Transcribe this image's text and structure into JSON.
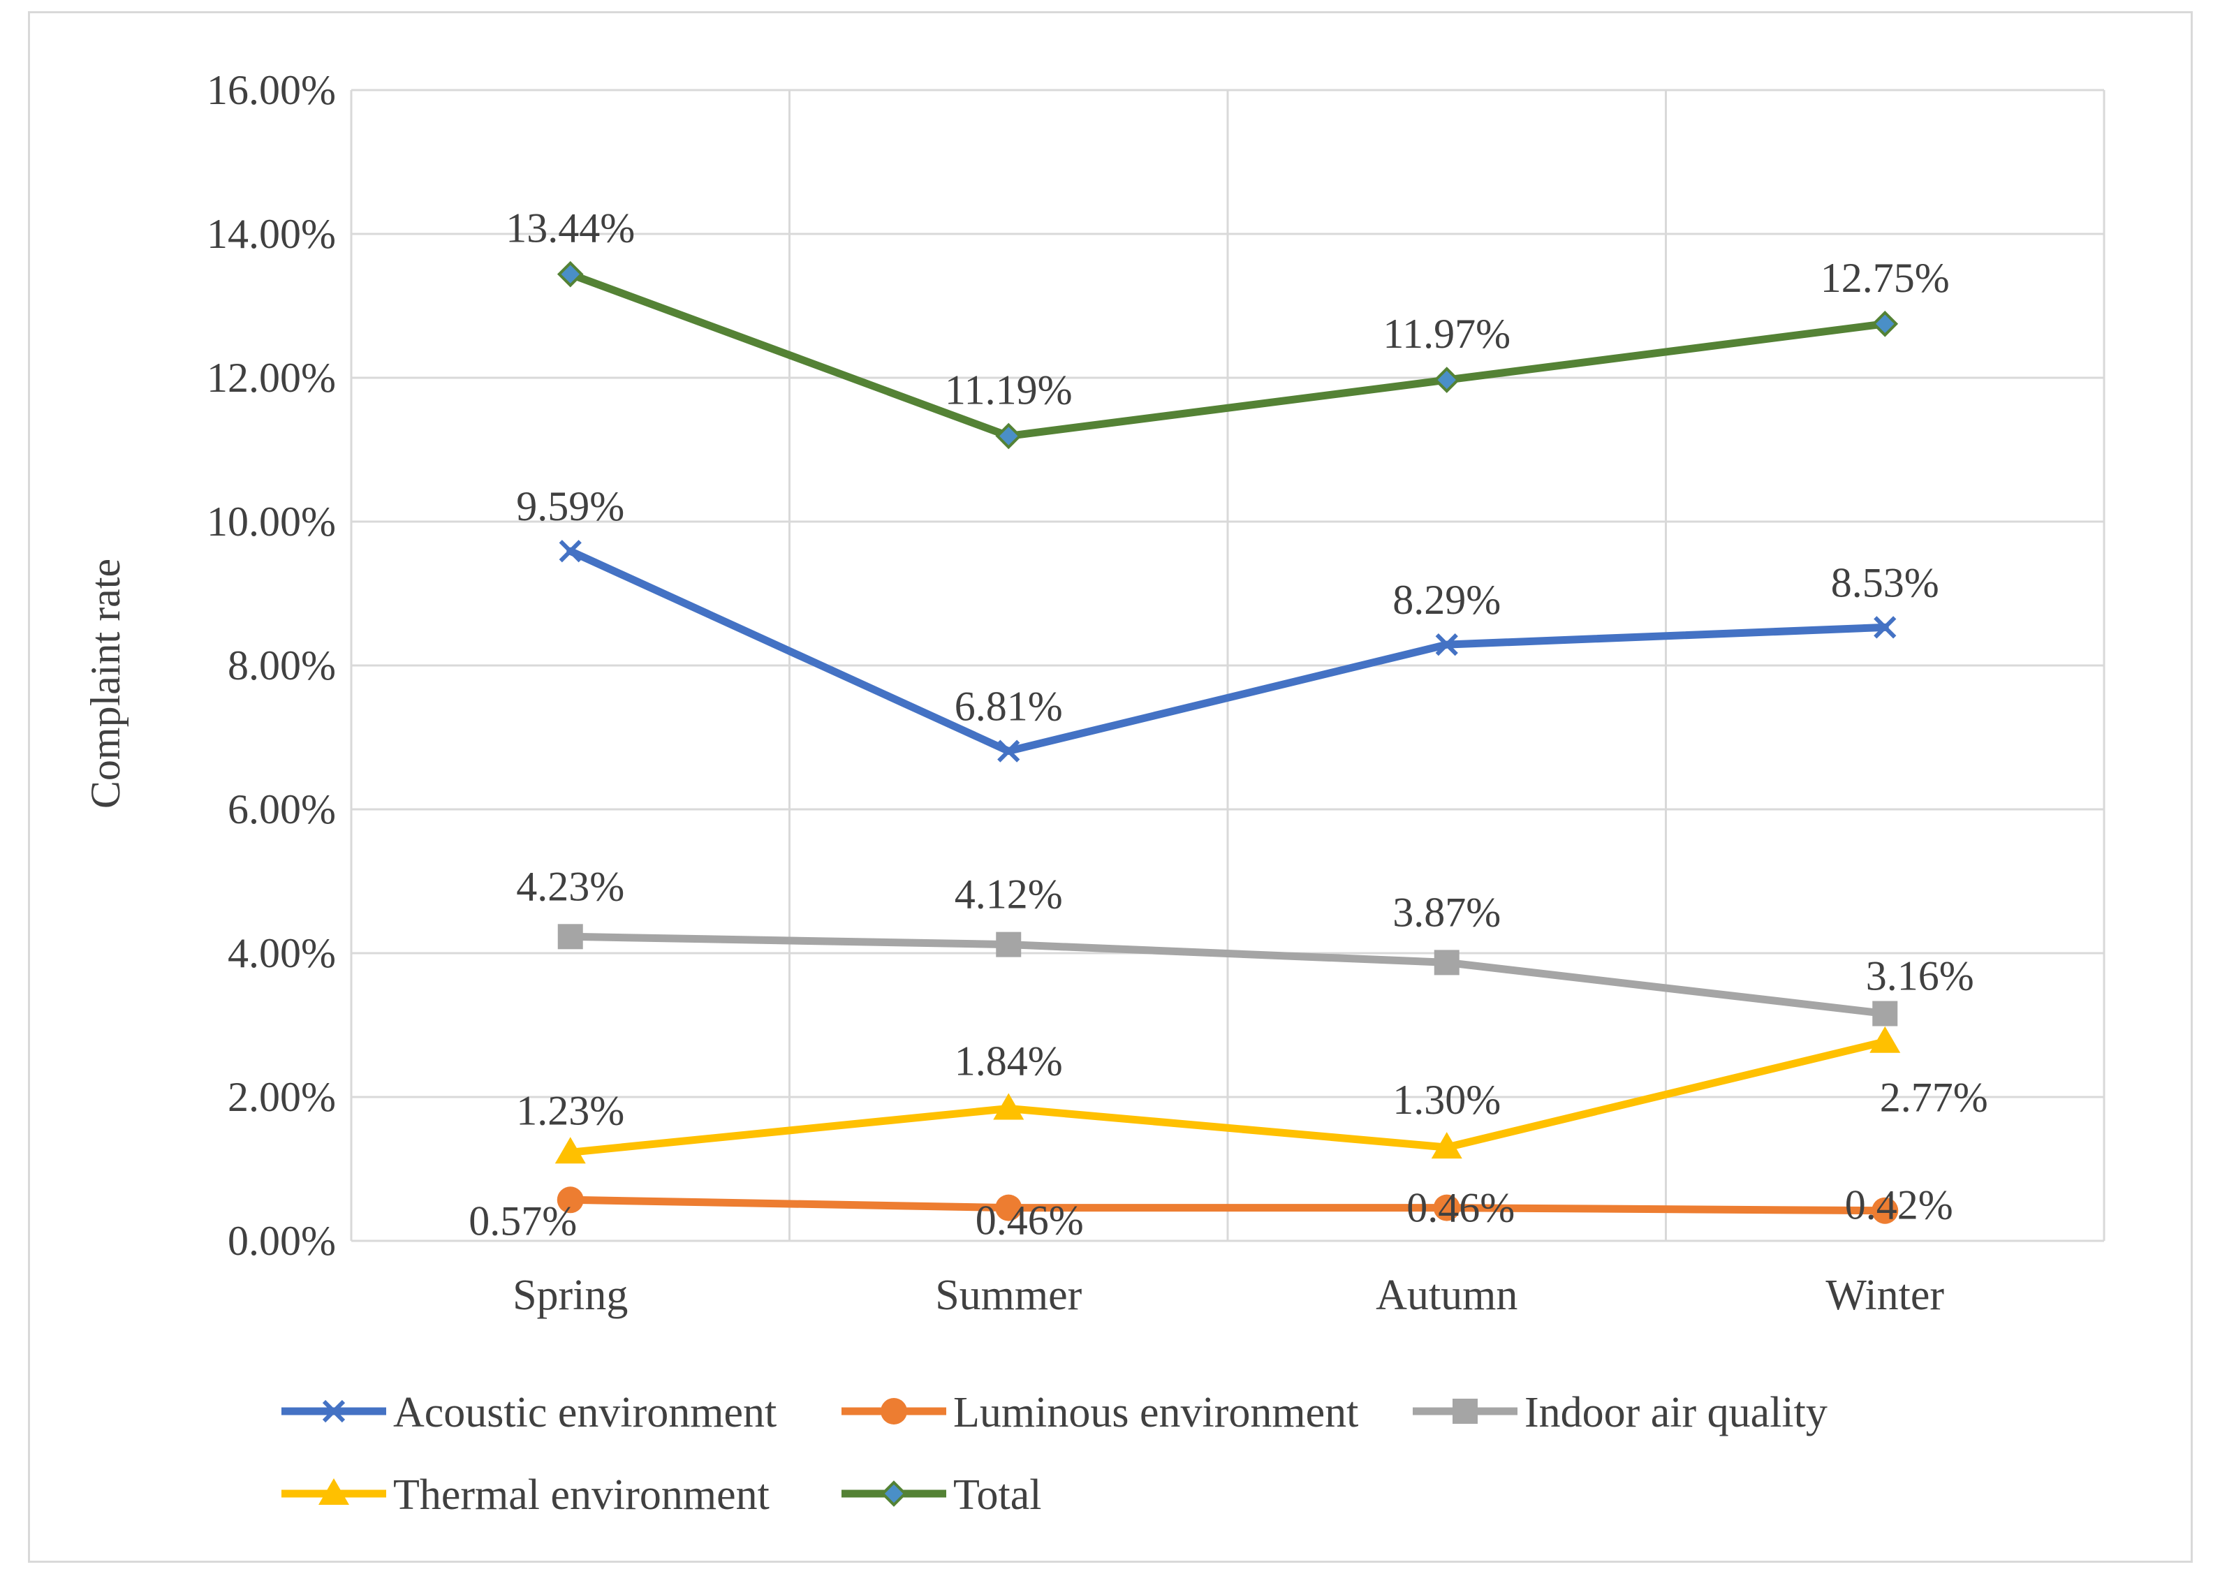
{
  "chart_data": {
    "type": "line",
    "title": "",
    "xlabel": "",
    "ylabel": "Complaint rate",
    "ylim": [
      0,
      16
    ],
    "ytick_step": 2,
    "yticks": [
      "0.00%",
      "2.00%",
      "4.00%",
      "6.00%",
      "8.00%",
      "10.00%",
      "12.00%",
      "14.00%",
      "16.00%"
    ],
    "categories": [
      "Spring",
      "Summer",
      "Autumn",
      "Winter"
    ],
    "grid": true,
    "legend_position": "bottom",
    "series": [
      {
        "name": "Acoustic environment",
        "color": "#4472c4",
        "marker": "x",
        "values": [
          9.59,
          6.81,
          8.29,
          8.53
        ],
        "labels": [
          "9.59%",
          "6.81%",
          "8.29%",
          "8.53%"
        ]
      },
      {
        "name": "Luminous environment",
        "color": "#ed7d31",
        "marker": "circle",
        "values": [
          0.57,
          0.46,
          0.46,
          0.42
        ],
        "labels": [
          "0.57%",
          "0.46%",
          "0.46%",
          "0.42%"
        ]
      },
      {
        "name": "Indoor air quality",
        "color": "#a5a5a5",
        "marker": "square",
        "values": [
          4.23,
          4.12,
          3.87,
          3.16
        ],
        "labels": [
          "4.23%",
          "4.12%",
          "3.87%",
          "3.16%"
        ]
      },
      {
        "name": "Thermal environment",
        "color": "#ffc000",
        "marker": "triangle",
        "values": [
          1.23,
          1.84,
          1.3,
          2.77
        ],
        "labels": [
          "1.23%",
          "1.84%",
          "1.30%",
          "2.77%"
        ]
      },
      {
        "name": "Total",
        "color": "#548235",
        "marker": "diamond",
        "marker_fill": "#4a8fc7",
        "values": [
          13.44,
          11.19,
          11.97,
          12.75
        ],
        "labels": [
          "13.44%",
          "11.19%",
          "11.97%",
          "12.75%"
        ]
      }
    ]
  }
}
